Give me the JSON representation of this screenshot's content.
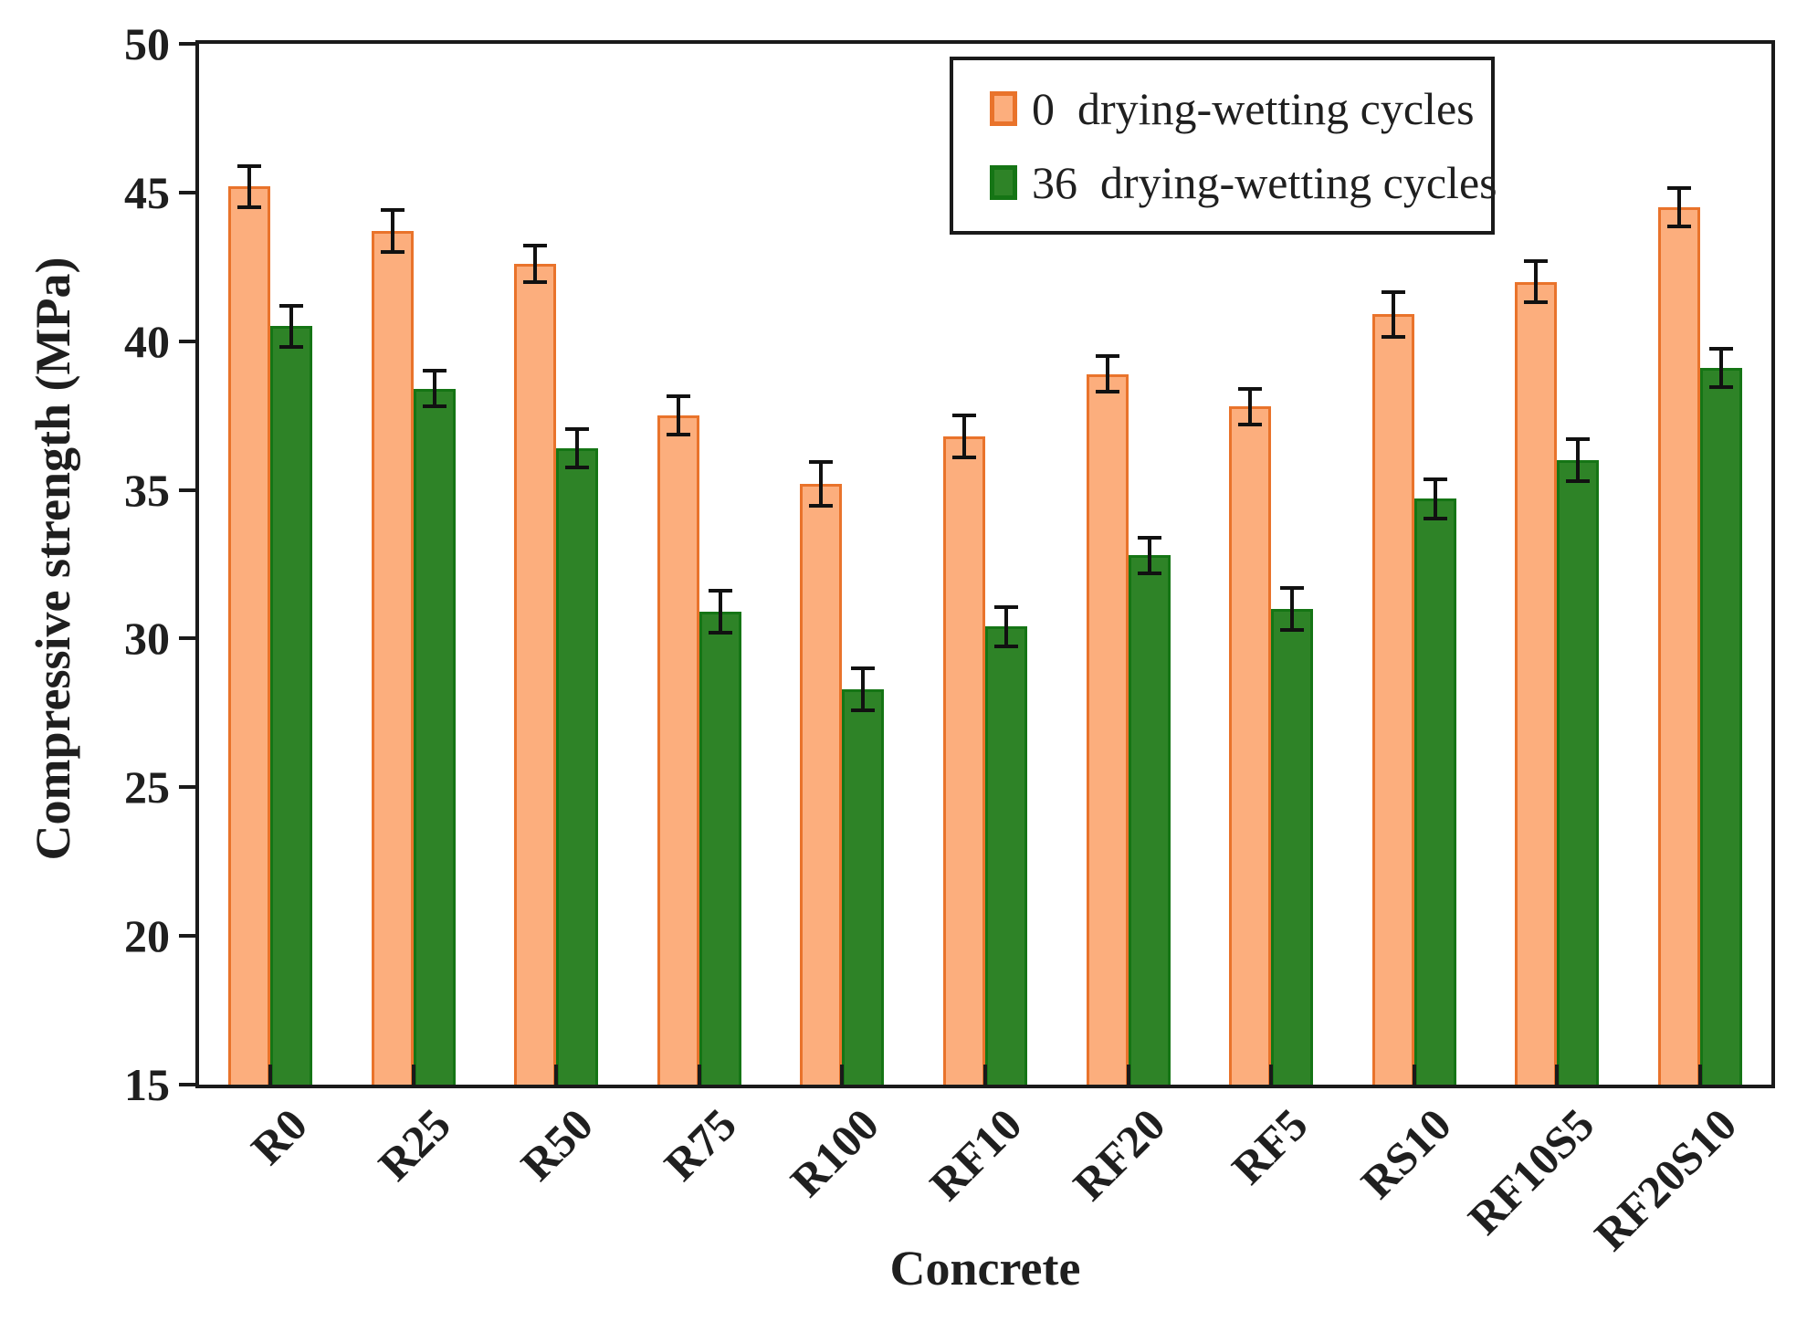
{
  "chart_data": {
    "type": "bar",
    "title": "",
    "xlabel": "Concrete",
    "ylabel": "Compressive strength (MPa)",
    "ylim": [
      15,
      50
    ],
    "yticks": [
      15,
      20,
      25,
      30,
      35,
      40,
      45,
      50
    ],
    "grid": false,
    "legend_position": "top-right-inside",
    "error_bar_color": "#111111",
    "frame_color": "#1a1a1a",
    "categories": [
      "R0",
      "R25",
      "R50",
      "R75",
      "R100",
      "RF10",
      "RF20",
      "RF5",
      "RS10",
      "RF10S5",
      "RF20S10"
    ],
    "series": [
      {
        "name": "0  drying-wetting cycles",
        "values": [
          45.2,
          43.7,
          42.6,
          37.5,
          35.2,
          36.8,
          38.9,
          37.8,
          40.9,
          42.0,
          44.5
        ],
        "errors": [
          0.7,
          0.7,
          0.6,
          0.65,
          0.75,
          0.7,
          0.6,
          0.6,
          0.75,
          0.7,
          0.65
        ],
        "fill": "#FCAE7D",
        "edge": "#E9732B"
      },
      {
        "name": "36  drying-wetting cycles",
        "values": [
          40.5,
          38.4,
          36.4,
          30.9,
          28.3,
          30.4,
          32.8,
          31.0,
          34.7,
          36.0,
          39.1
        ],
        "errors": [
          0.7,
          0.6,
          0.65,
          0.7,
          0.7,
          0.65,
          0.6,
          0.7,
          0.65,
          0.7,
          0.65
        ],
        "fill": "#2E8327",
        "edge": "#157515"
      }
    ]
  }
}
